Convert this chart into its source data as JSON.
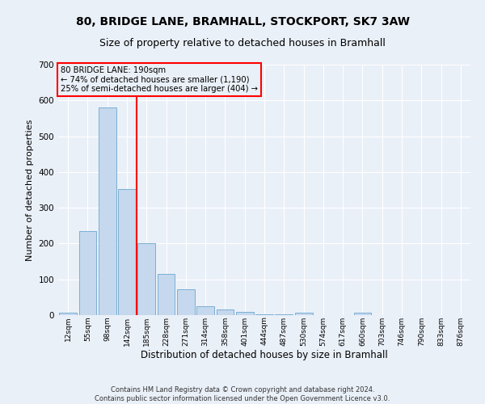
{
  "title_line1": "80, BRIDGE LANE, BRAMHALL, STOCKPORT, SK7 3AW",
  "title_line2": "Size of property relative to detached houses in Bramhall",
  "xlabel": "Distribution of detached houses by size in Bramhall",
  "ylabel": "Number of detached properties",
  "bar_labels": [
    "12sqm",
    "55sqm",
    "98sqm",
    "142sqm",
    "185sqm",
    "228sqm",
    "271sqm",
    "314sqm",
    "358sqm",
    "401sqm",
    "444sqm",
    "487sqm",
    "530sqm",
    "574sqm",
    "617sqm",
    "660sqm",
    "703sqm",
    "746sqm",
    "790sqm",
    "833sqm",
    "876sqm"
  ],
  "bar_values": [
    7,
    235,
    580,
    352,
    202,
    115,
    72,
    25,
    15,
    8,
    3,
    2,
    6,
    0,
    0,
    6,
    0,
    0,
    0,
    0,
    0
  ],
  "bar_color": "#c5d8ed",
  "bar_edge_color": "#7aafd4",
  "annotation_label": "80 BRIDGE LANE: 190sqm",
  "annotation_line1": "← 74% of detached houses are smaller (1,190)",
  "annotation_line2": "25% of semi-detached houses are larger (404) →",
  "annotation_box_color": "red",
  "vline_color": "red",
  "vline_x_index": 3.5,
  "ylim": [
    0,
    700
  ],
  "yticks": [
    0,
    100,
    200,
    300,
    400,
    500,
    600,
    700
  ],
  "footer_line1": "Contains HM Land Registry data © Crown copyright and database right 2024.",
  "footer_line2": "Contains public sector information licensed under the Open Government Licence v3.0.",
  "background_color": "#eaf0f8",
  "grid_color": "#ffffff",
  "title1_fontsize": 10,
  "title2_fontsize": 9,
  "ylabel_fontsize": 8,
  "xlabel_fontsize": 8.5
}
